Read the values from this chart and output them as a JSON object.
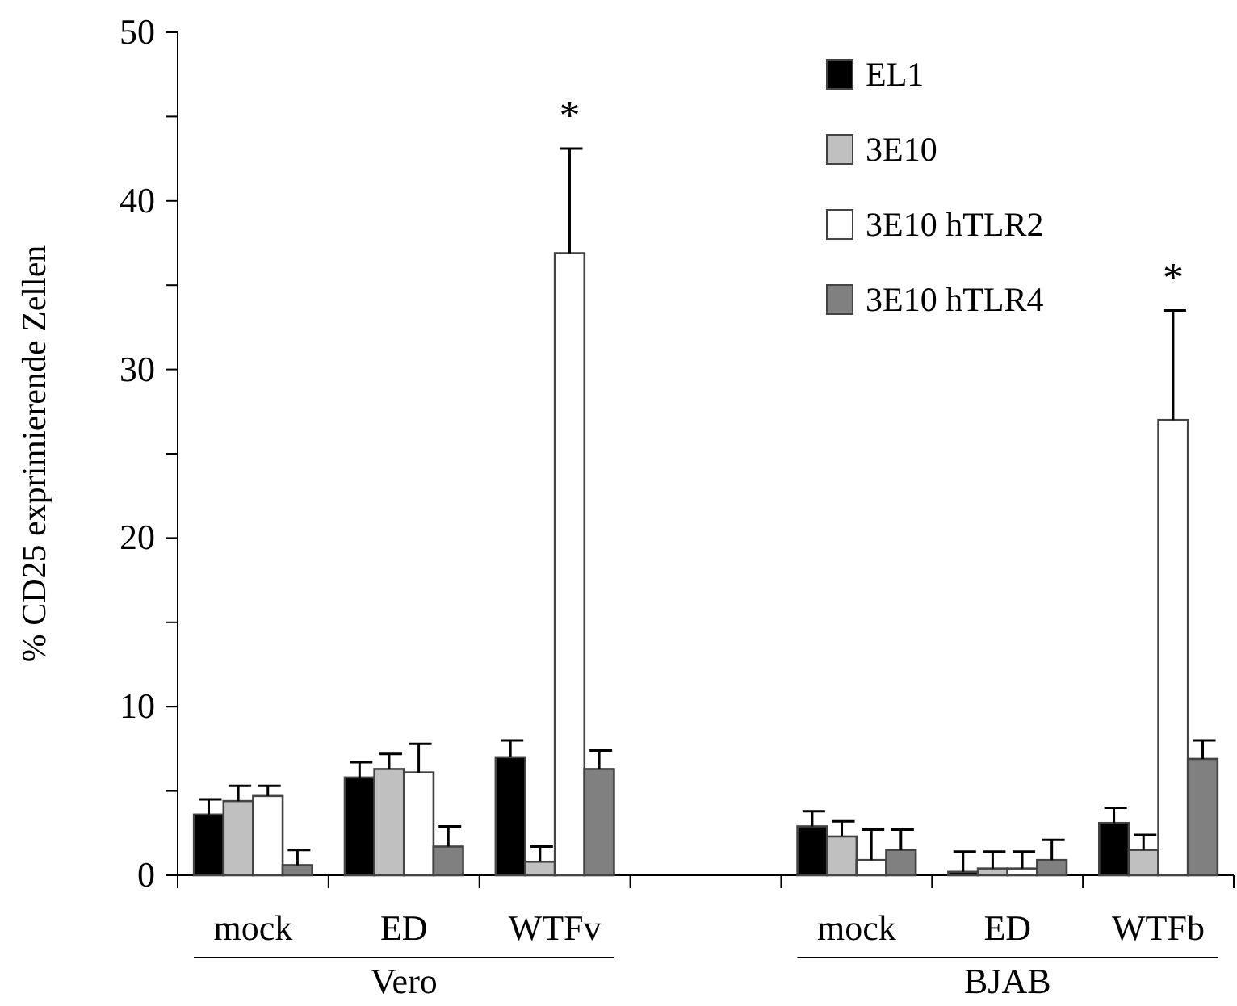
{
  "chart_data": {
    "type": "bar",
    "ylabel": "% CD25 exprimierende Zellen",
    "categories": [
      "mock",
      "ED",
      "WTFv",
      null,
      "mock",
      "ED",
      "WTFb"
    ],
    "series": [
      {
        "name": "EL1",
        "color": "#000000",
        "values": [
          3.6,
          5.8,
          7.0,
          null,
          2.9,
          0.2,
          3.1
        ],
        "errors": [
          [
            3.6,
            4.5
          ],
          [
            5.8,
            6.7
          ],
          [
            7.0,
            8.0
          ],
          null,
          [
            2.9,
            3.8
          ],
          [
            0.2,
            1.4
          ],
          [
            3.1,
            4.0
          ]
        ]
      },
      {
        "name": "3E10",
        "color": "#c0c0c0",
        "values": [
          4.4,
          6.3,
          0.8,
          null,
          2.3,
          0.4,
          1.5
        ],
        "errors": [
          [
            4.4,
            5.3
          ],
          [
            6.3,
            7.2
          ],
          [
            0.8,
            1.7
          ],
          null,
          [
            2.3,
            3.2
          ],
          [
            0.4,
            1.4
          ],
          [
            1.5,
            2.4
          ]
        ]
      },
      {
        "name": "3E10 hTLR2",
        "color": "#ffffff",
        "values": [
          4.7,
          6.1,
          36.9,
          null,
          0.9,
          0.4,
          27.0
        ],
        "errors": [
          [
            4.7,
            5.3
          ],
          [
            6.1,
            7.8
          ],
          [
            36.9,
            43.1
          ],
          null,
          [
            0.9,
            2.7
          ],
          [
            0.4,
            1.4
          ],
          [
            27.0,
            33.5
          ]
        ]
      },
      {
        "name": "3E10 hTLR4",
        "color": "#808080",
        "values": [
          0.6,
          1.7,
          6.3,
          null,
          1.5,
          0.9,
          6.9
        ],
        "errors": [
          [
            0.6,
            1.5
          ],
          [
            1.7,
            2.9
          ],
          [
            6.3,
            7.4
          ],
          null,
          [
            1.5,
            2.7
          ],
          [
            0.9,
            2.1
          ],
          [
            6.9,
            8.0
          ]
        ]
      }
    ],
    "ylim": [
      0,
      50
    ],
    "yticks": [
      0,
      {
        "value": 5,
        "label": null
      },
      10,
      {
        "value": 15,
        "label": null
      },
      20,
      {
        "value": 25,
        "label": null
      },
      30,
      {
        "value": 35,
        "label": null
      },
      40,
      {
        "value": 45,
        "label": null
      },
      50
    ],
    "legend": "top right",
    "grid": false,
    "annotations": [
      {
        "text": "*",
        "x": "WTFv",
        "y": 43.1
      },
      {
        "text": "*",
        "x": "WTFb",
        "y": 33.5
      },
      "Vero",
      "BJAB"
    ]
  }
}
